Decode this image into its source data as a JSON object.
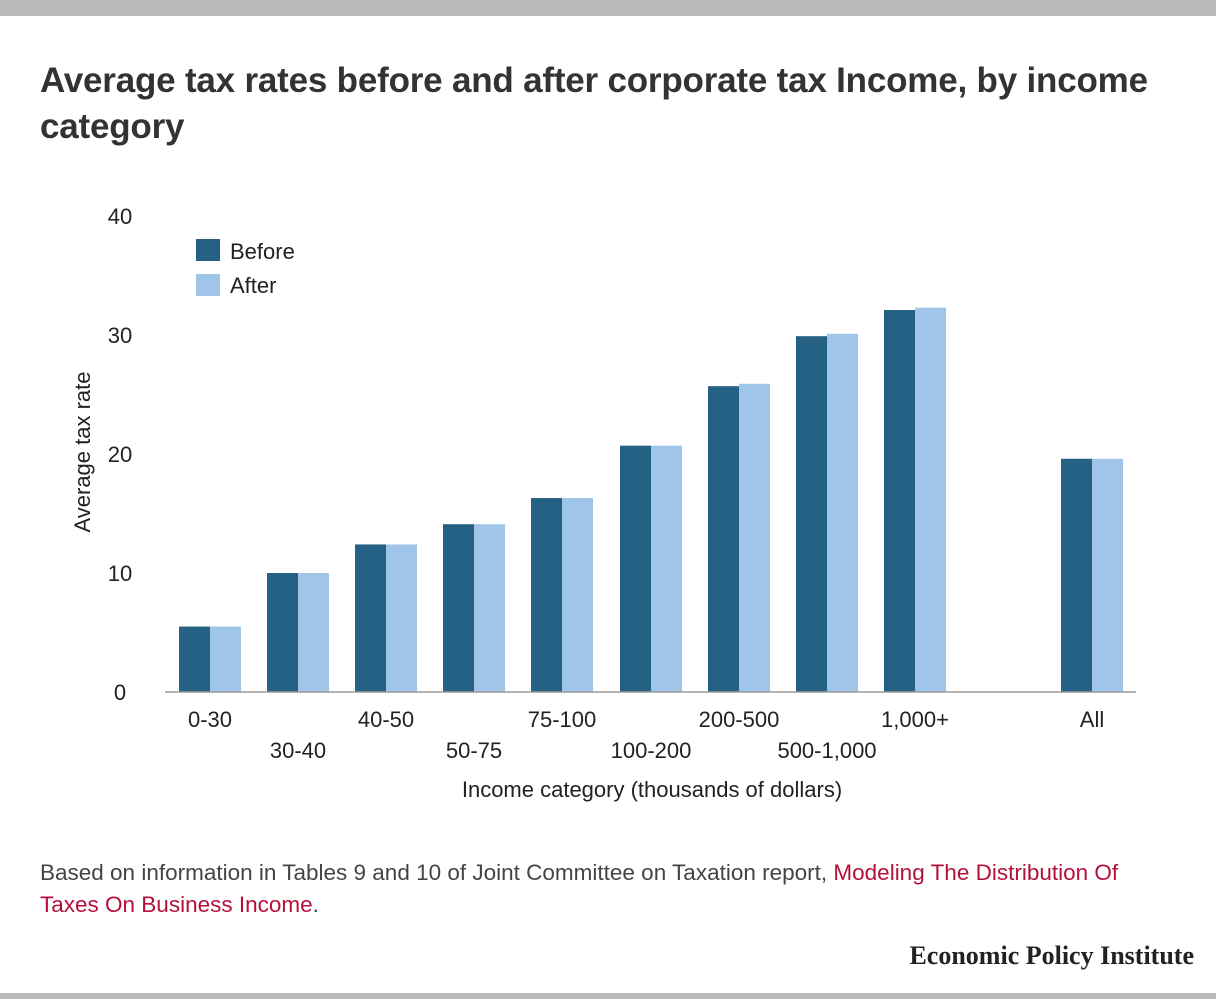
{
  "title": "Average tax rates before and after corporate tax Income, by income category",
  "note": {
    "text": "Based on information in Tables 9 and 10 of Joint Committee on Taxation report,",
    "link_text": "Modeling The Distribution Of Taxes On Business Income",
    "end": "."
  },
  "brand": "Economic Policy Institute",
  "colors": {
    "before": "#256184",
    "after": "#9fc6e8",
    "link": "#b5103c"
  },
  "chart_data": {
    "type": "bar",
    "categories": [
      "0-30",
      "30-40",
      "40-50",
      "50-75",
      "75-100",
      "100-200",
      "200-500",
      "500-1,000",
      "1,000+",
      "All"
    ],
    "series": [
      {
        "name": "Before",
        "values": [
          5.5,
          10.0,
          12.4,
          14.1,
          16.3,
          20.7,
          25.7,
          29.9,
          32.1,
          19.6
        ]
      },
      {
        "name": "After",
        "values": [
          5.5,
          10.0,
          12.4,
          14.1,
          16.3,
          20.7,
          25.9,
          30.1,
          32.3,
          19.6
        ]
      }
    ],
    "xlabel": "Income category (thousands of dollars)",
    "ylabel": "Average tax rate",
    "ylim": [
      0,
      40
    ],
    "yticks": [
      0,
      10,
      20,
      30,
      40
    ],
    "grid": false,
    "legend": "top-left"
  }
}
